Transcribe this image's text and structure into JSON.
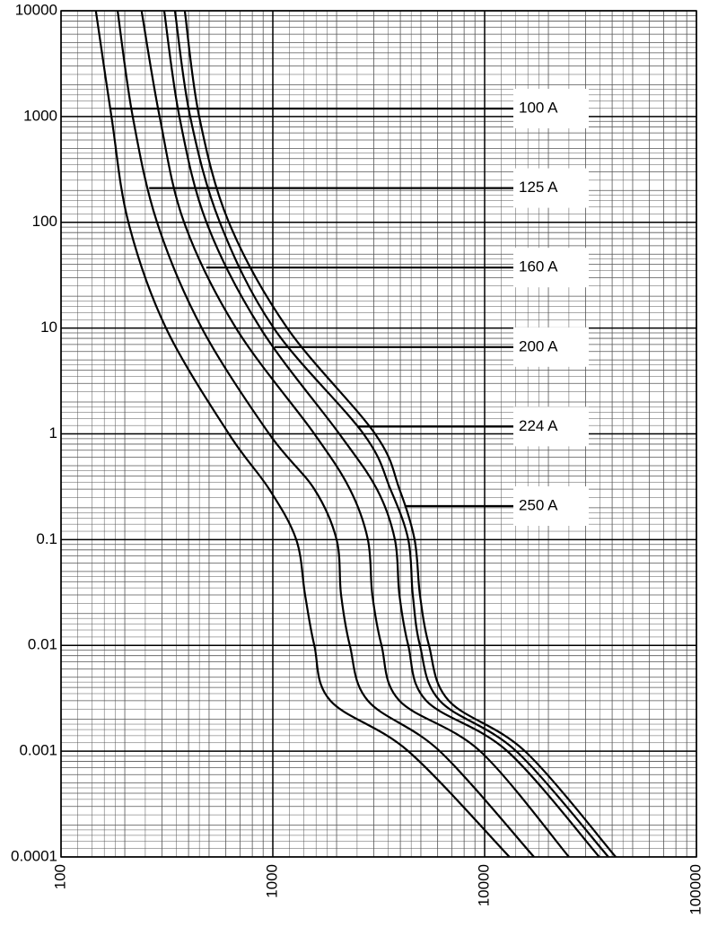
{
  "chart_data": {
    "type": "line",
    "xscale": "log",
    "yscale": "log",
    "grid": true,
    "minor_grid": true,
    "xlim": [
      100,
      100000
    ],
    "xticks": [
      100,
      1000,
      10000,
      100000
    ],
    "ylim": [
      0.0001,
      10000
    ],
    "yticks": [
      0.0001,
      0.001,
      0.01,
      0.1,
      1,
      10,
      100,
      1000,
      10000
    ],
    "series": [
      {
        "name": "100 A",
        "color": "#000000",
        "x": [
          146,
          173,
          208,
          313,
          620,
          961,
          1290,
          1420,
          1570,
          1870,
          4360,
          13100
        ],
        "values": [
          10000,
          1000,
          100,
          10,
          1,
          0.3,
          0.1,
          0.03,
          0.01,
          0.003,
          0.001,
          0.0001
        ]
      },
      {
        "name": "125 A",
        "color": "#000000",
        "x": [
          185,
          218,
          284,
          462,
          961,
          1570,
          2000,
          2100,
          2310,
          2810,
          6140,
          17100
        ],
        "values": [
          10000,
          1000,
          100,
          10,
          1,
          0.3,
          0.1,
          0.03,
          0.01,
          0.003,
          0.001,
          0.0001
        ]
      },
      {
        "name": "160 A",
        "color": "#000000",
        "x": [
          240,
          292,
          381,
          670,
          1570,
          2310,
          2810,
          2950,
          3260,
          3960,
          9520,
          25000
        ],
        "values": [
          10000,
          1000,
          100,
          10,
          1,
          0.3,
          0.1,
          0.03,
          0.01,
          0.003,
          0.001,
          0.0001
        ]
      },
      {
        "name": "200 A",
        "color": "#000000",
        "x": [
          307,
          362,
          486,
          873,
          2060,
          3100,
          3770,
          3960,
          4360,
          5300,
          12800,
          34800
        ],
        "values": [
          10000,
          1000,
          100,
          10,
          1,
          0.3,
          0.1,
          0.03,
          0.01,
          0.003,
          0.001,
          0.0001
        ]
      },
      {
        "name": "224 A",
        "color": "#000000",
        "x": [
          345,
          407,
          562,
          1010,
          2680,
          3590,
          4360,
          4580,
          4950,
          6140,
          14100,
          38400
        ],
        "values": [
          10000,
          1000,
          100,
          10,
          1,
          0.3,
          0.1,
          0.03,
          0.01,
          0.003,
          0.001,
          0.0001
        ]
      },
      {
        "name": "250 A",
        "color": "#000000",
        "x": [
          384,
          449,
          620,
          1170,
          3040,
          3960,
          4670,
          4950,
          5460,
          6770,
          15500,
          41600
        ],
        "values": [
          10000,
          1000,
          100,
          10,
          1,
          0.3,
          0.1,
          0.03,
          0.01,
          0.003,
          0.001,
          0.0001
        ]
      }
    ]
  }
}
